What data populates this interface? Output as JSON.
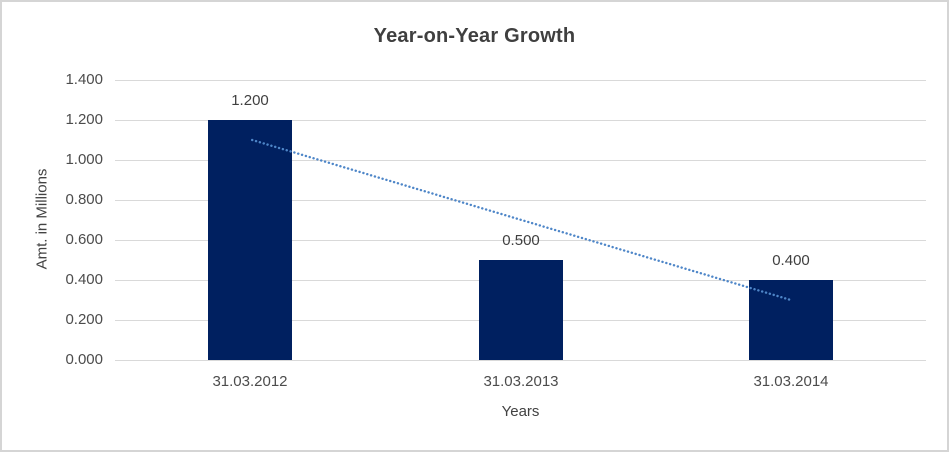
{
  "chart_data": {
    "type": "bar",
    "title": "Year-on-Year Growth",
    "xlabel": "Years",
    "ylabel": "Amt. in Millions",
    "categories": [
      "31.03.2012",
      "31.03.2013",
      "31.03.2014"
    ],
    "series": [
      {
        "name": "Amt. in Millions",
        "values": [
          1.2,
          0.5,
          0.4
        ]
      }
    ],
    "data_labels": [
      "1.200",
      "0.500",
      "0.400"
    ],
    "ylim": [
      0,
      1.4
    ],
    "ytick_step": 0.2,
    "ytick_labels": [
      "0.000",
      "0.200",
      "0.400",
      "0.600",
      "0.800",
      "1.000",
      "1.200",
      "1.400"
    ],
    "grid": "horizontal",
    "legend": "none",
    "trendline": {
      "style": "dotted",
      "start_value": 1.1,
      "end_value": 0.3
    },
    "colors": {
      "bar": "#002060",
      "trendline": "#4e86c8",
      "gridline": "#d9d9d9",
      "title_text": "#3f3f3f",
      "axis_text": "#4c4c4c",
      "frame_border": "#d5d5d5"
    }
  }
}
